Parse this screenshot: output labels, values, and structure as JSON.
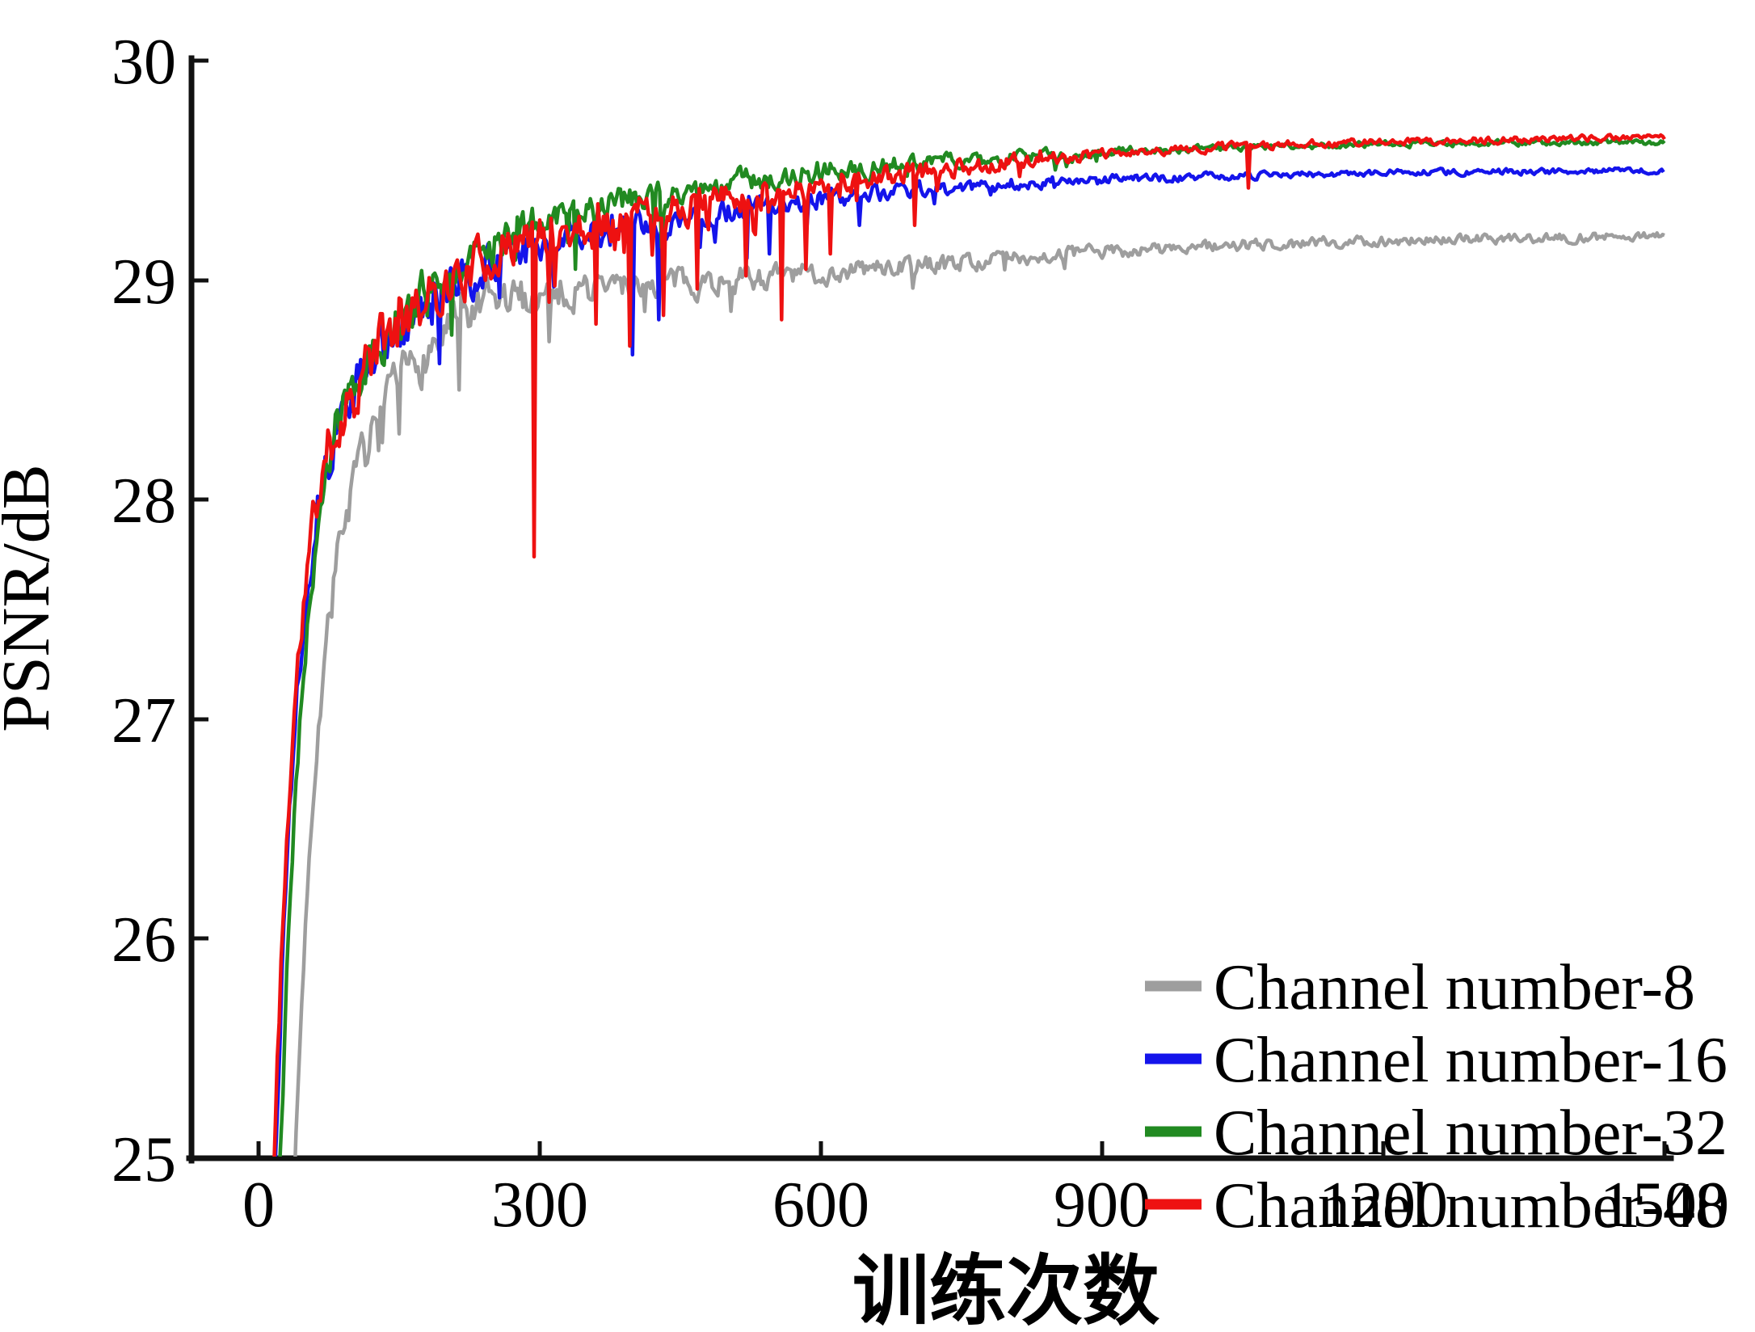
{
  "chart_data": {
    "type": "line",
    "title": "",
    "xlabel": "训练次数",
    "ylabel": "PSNR/dB",
    "xlim": [
      -75,
      1510
    ],
    "ylim": [
      25,
      30
    ],
    "x_ticks": [
      0,
      300,
      600,
      900,
      1200,
      1500
    ],
    "x_tick_labels": [
      "0",
      "300",
      "600",
      "900",
      "1200",
      "1500"
    ],
    "y_ticks": [
      25,
      26,
      27,
      28,
      29,
      30
    ],
    "y_tick_labels": [
      "25",
      "26",
      "27",
      "28",
      "29",
      "30"
    ],
    "grid": false,
    "legend": {
      "position": "lower right",
      "border": false
    },
    "x_unit": "training iterations",
    "y_unit": "dB",
    "series": [
      {
        "id": "channel-8",
        "label": "Channel number-8",
        "color": "#9e9e9e",
        "seed": 7,
        "dip_rate": 0.03,
        "final_value": 29.2,
        "mean_curve": [
          [
            38,
            24.9
          ],
          [
            46,
            25.7
          ],
          [
            54,
            26.4
          ],
          [
            64,
            27.0
          ],
          [
            76,
            27.5
          ],
          [
            90,
            27.9
          ],
          [
            108,
            28.15
          ],
          [
            130,
            28.35
          ],
          [
            155,
            28.55
          ],
          [
            185,
            28.7
          ],
          [
            220,
            28.82
          ],
          [
            260,
            28.9
          ],
          [
            320,
            28.95
          ],
          [
            400,
            28.98
          ],
          [
            500,
            29.0
          ],
          [
            600,
            29.03
          ],
          [
            700,
            29.07
          ],
          [
            800,
            29.1
          ],
          [
            900,
            29.13
          ],
          [
            1000,
            29.15
          ],
          [
            1200,
            29.18
          ],
          [
            1500,
            29.2
          ]
        ],
        "noise_amplitude": [
          [
            40,
            0.04
          ],
          [
            80,
            0.08
          ],
          [
            130,
            0.1
          ],
          [
            200,
            0.1
          ],
          [
            300,
            0.08
          ],
          [
            420,
            0.06
          ],
          [
            600,
            0.045
          ],
          [
            800,
            0.03
          ],
          [
            1000,
            0.025
          ],
          [
            1300,
            0.02
          ],
          [
            1500,
            0.018
          ]
        ],
        "dips": [
          [
            150,
            28.3
          ],
          [
            214,
            28.5
          ],
          [
            310,
            28.72
          ]
        ]
      },
      {
        "id": "channel-16",
        "label": "Channel number-16",
        "color": "#1414eb",
        "seed": 13,
        "dip_rate": 0.025,
        "final_value": 29.5,
        "mean_curve": [
          [
            17,
            24.9
          ],
          [
            25,
            25.9
          ],
          [
            33,
            26.6
          ],
          [
            42,
            27.2
          ],
          [
            52,
            27.65
          ],
          [
            65,
            28.05
          ],
          [
            82,
            28.32
          ],
          [
            105,
            28.52
          ],
          [
            130,
            28.68
          ],
          [
            160,
            28.8
          ],
          [
            200,
            28.95
          ],
          [
            250,
            29.08
          ],
          [
            300,
            29.16
          ],
          [
            350,
            29.2
          ],
          [
            400,
            29.24
          ],
          [
            450,
            29.28
          ],
          [
            500,
            29.31
          ],
          [
            550,
            29.34
          ],
          [
            600,
            29.37
          ],
          [
            700,
            29.41
          ],
          [
            800,
            29.44
          ],
          [
            900,
            29.46
          ],
          [
            1000,
            29.47
          ],
          [
            1200,
            29.49
          ],
          [
            1500,
            29.5
          ]
        ],
        "noise_amplitude": [
          [
            20,
            0.07
          ],
          [
            60,
            0.1
          ],
          [
            120,
            0.11
          ],
          [
            200,
            0.09
          ],
          [
            300,
            0.07
          ],
          [
            450,
            0.055
          ],
          [
            600,
            0.04
          ],
          [
            750,
            0.03
          ],
          [
            900,
            0.018
          ],
          [
            1100,
            0.013
          ],
          [
            1500,
            0.011
          ]
        ],
        "dips": [
          [
            185,
            28.8
          ],
          [
            193,
            28.62
          ],
          [
            256,
            28.92
          ],
          [
            398,
            28.66
          ],
          [
            427,
            28.82
          ],
          [
            470,
            29.15
          ],
          [
            520,
            29.1
          ],
          [
            545,
            29.12
          ],
          [
            640,
            29.25
          ]
        ]
      },
      {
        "id": "channel-32",
        "label": "Channel number-32",
        "color": "#218a21",
        "seed": 5,
        "dip_rate": 0.02,
        "final_value": 29.62,
        "mean_curve": [
          [
            22,
            24.9
          ],
          [
            30,
            25.8
          ],
          [
            38,
            26.5
          ],
          [
            46,
            27.1
          ],
          [
            56,
            27.6
          ],
          [
            68,
            28.0
          ],
          [
            85,
            28.35
          ],
          [
            105,
            28.55
          ],
          [
            130,
            28.72
          ],
          [
            155,
            28.85
          ],
          [
            200,
            29.05
          ],
          [
            250,
            29.18
          ],
          [
            300,
            29.27
          ],
          [
            350,
            29.32
          ],
          [
            400,
            29.36
          ],
          [
            450,
            29.4
          ],
          [
            500,
            29.43
          ],
          [
            550,
            29.47
          ],
          [
            600,
            29.5
          ],
          [
            700,
            29.53
          ],
          [
            800,
            29.56
          ],
          [
            900,
            29.58
          ],
          [
            1000,
            29.6
          ],
          [
            1200,
            29.62
          ],
          [
            1500,
            29.63
          ]
        ],
        "noise_amplitude": [
          [
            20,
            0.06
          ],
          [
            60,
            0.09
          ],
          [
            120,
            0.1
          ],
          [
            200,
            0.085
          ],
          [
            300,
            0.07
          ],
          [
            450,
            0.055
          ],
          [
            600,
            0.045
          ],
          [
            750,
            0.03
          ],
          [
            900,
            0.02
          ],
          [
            1100,
            0.013
          ],
          [
            1500,
            0.011
          ]
        ],
        "dips": [
          [
            205,
            28.75
          ],
          [
            338,
            29.05
          ],
          [
            430,
            29.15
          ]
        ]
      },
      {
        "id": "channel-48",
        "label": "Channel number-48",
        "color": "#ee1111",
        "seed": 11,
        "dip_rate": 0.055,
        "final_value": 29.65,
        "mean_curve": [
          [
            16,
            24.9
          ],
          [
            24,
            25.9
          ],
          [
            32,
            26.6
          ],
          [
            40,
            27.15
          ],
          [
            50,
            27.6
          ],
          [
            62,
            28.0
          ],
          [
            80,
            28.3
          ],
          [
            100,
            28.5
          ],
          [
            125,
            28.68
          ],
          [
            150,
            28.8
          ],
          [
            200,
            28.98
          ],
          [
            250,
            29.12
          ],
          [
            300,
            29.2
          ],
          [
            350,
            29.25
          ],
          [
            400,
            29.3
          ],
          [
            450,
            29.33
          ],
          [
            500,
            29.37
          ],
          [
            550,
            29.4
          ],
          [
            600,
            29.43
          ],
          [
            650,
            29.46
          ],
          [
            700,
            29.49
          ],
          [
            800,
            29.54
          ],
          [
            900,
            29.57
          ],
          [
            1000,
            29.6
          ],
          [
            1100,
            29.62
          ],
          [
            1200,
            29.63
          ],
          [
            1500,
            29.65
          ]
        ],
        "noise_amplitude": [
          [
            20,
            0.08
          ],
          [
            60,
            0.12
          ],
          [
            120,
            0.13
          ],
          [
            200,
            0.1
          ],
          [
            300,
            0.085
          ],
          [
            450,
            0.07
          ],
          [
            600,
            0.05
          ],
          [
            750,
            0.035
          ],
          [
            900,
            0.02
          ],
          [
            1100,
            0.015
          ],
          [
            1500,
            0.012
          ]
        ],
        "dips": [
          [
            293,
            27.74
          ],
          [
            310,
            28.9
          ],
          [
            360,
            28.8
          ],
          [
            396,
            28.7
          ],
          [
            432,
            28.84
          ],
          [
            468,
            28.96
          ],
          [
            520,
            29.02
          ],
          [
            558,
            28.82
          ],
          [
            584,
            29.05
          ],
          [
            610,
            29.12
          ],
          [
            700,
            29.25
          ],
          [
            1055,
            29.42
          ]
        ]
      }
    ]
  }
}
